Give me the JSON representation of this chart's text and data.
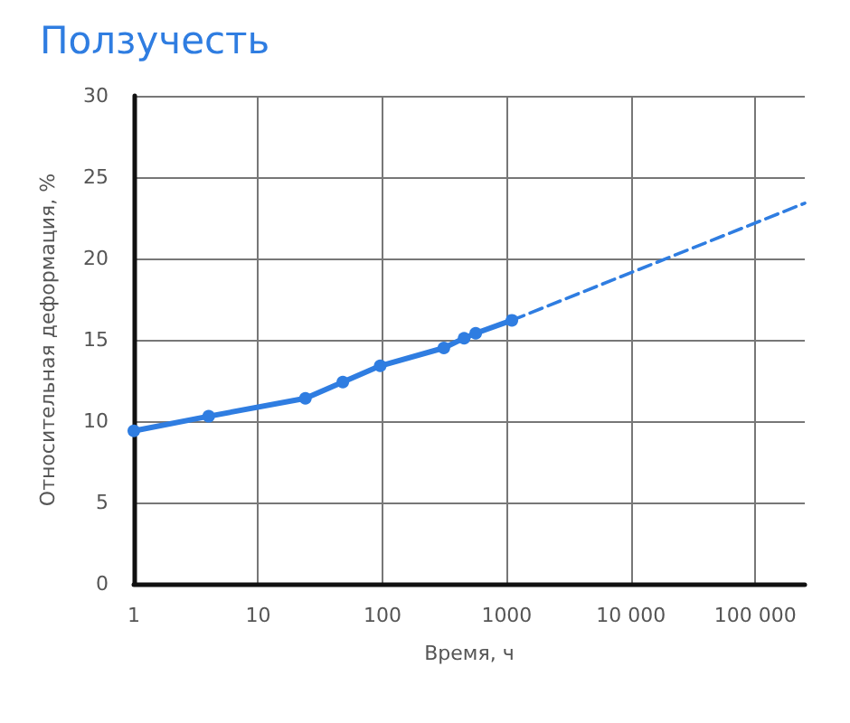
{
  "chart_data": {
    "type": "line",
    "title": "Ползучесть",
    "xlabel": "Время, ч",
    "ylabel": "Относительная деформация, %",
    "log": "x",
    "grid": true,
    "xlim": [
      1,
      250000
    ],
    "xticks": [
      1,
      10,
      100,
      1000,
      {
        "value": 10000,
        "label": "10 000"
      },
      {
        "value": 100000,
        "label": "100 000"
      }
    ],
    "ylim": [
      0,
      30
    ],
    "yticks": [
      0,
      5,
      10,
      15,
      20,
      25,
      30
    ],
    "series": [
      {
        "color": "#2f7de1",
        "marker": "circle",
        "line_style": "solid",
        "x": [
          1,
          4,
          24,
          48,
          96,
          312,
          454,
          563,
          1100
        ],
        "values": [
          9.4,
          10.3,
          11.4,
          12.4,
          13.4,
          14.5,
          15.1,
          15.4,
          16.2
        ]
      },
      {
        "color": "#2f7de1",
        "marker": "none",
        "line_style": "dashed",
        "x": [
          1100,
          250000
        ],
        "values": [
          16.2,
          23.4
        ]
      }
    ]
  }
}
